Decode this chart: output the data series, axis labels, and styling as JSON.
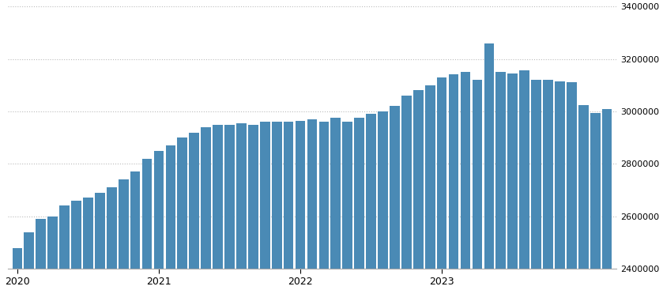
{
  "bar_color": "#4a8ab5",
  "background_color": "#ffffff",
  "ylim": [
    2400000,
    3400000
  ],
  "yticks": [
    2400000,
    2600000,
    2800000,
    3000000,
    3200000,
    3400000
  ],
  "grid_color": "#bbbbbb",
  "values": [
    2480000,
    2540000,
    2590000,
    2600000,
    2640000,
    2660000,
    2670000,
    2690000,
    2710000,
    2740000,
    2770000,
    2820000,
    2850000,
    2870000,
    2900000,
    2920000,
    2940000,
    2950000,
    2950000,
    2955000,
    2950000,
    2960000,
    2960000,
    2960000,
    2965000,
    2970000,
    2960000,
    2975000,
    2960000,
    2975000,
    2990000,
    3000000,
    3020000,
    3060000,
    3080000,
    3100000,
    3130000,
    3140000,
    3150000,
    3120000,
    3260000,
    3150000,
    3145000,
    3155000,
    3120000,
    3120000,
    3115000,
    3110000,
    3025000,
    2995000,
    3010000
  ],
  "xtick_labels": [
    "2020",
    "2021",
    "2022",
    "2023"
  ],
  "xtick_positions": [
    0,
    12,
    24,
    36
  ]
}
